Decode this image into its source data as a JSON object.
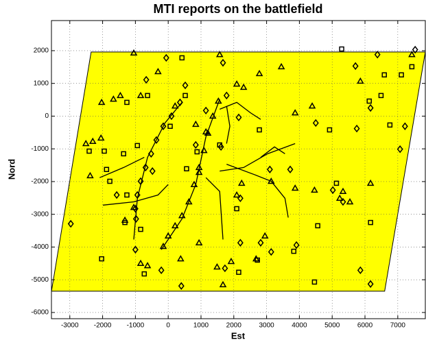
{
  "chart_data": {
    "type": "scatter",
    "title": "MTI reports on the battlefield",
    "x_label": "Est",
    "y_label": "Nord",
    "xlim": [
      -3560,
      7840
    ],
    "ylim": [
      -6190,
      2920
    ],
    "xticks": [
      -3000,
      -2000,
      -1000,
      0,
      1000,
      2000,
      3000,
      4000,
      5000,
      6000,
      7000
    ],
    "yticks": [
      -6000,
      -5000,
      -4000,
      -3000,
      -2000,
      -1000,
      0,
      1000,
      2000
    ],
    "grid": true,
    "region": {
      "color": "#ffff00",
      "x": [
        -2350,
        7840,
        6600,
        -3560
      ],
      "y": [
        1960,
        1960,
        -5350,
        -5350
      ]
    },
    "roads": {
      "color": "#000000",
      "lines": [
        {
          "x": [
            1570,
            1150,
            840,
            420,
            -210
          ],
          "y": [
            520,
            -630,
            -2090,
            -3140,
            -4080
          ]
        },
        {
          "x": [
            420,
            -100,
            -630,
            -940,
            -1050
          ],
          "y": [
            420,
            -210,
            -1260,
            -2510,
            -3770
          ]
        },
        {
          "x": [
            -1990,
            -1050,
            -310,
            0
          ],
          "y": [
            -2720,
            -2620,
            -2410,
            -2090
          ]
        },
        {
          "x": [
            1570,
            2090,
            2510,
            2820
          ],
          "y": [
            210,
            420,
            100,
            -100
          ]
        },
        {
          "x": [
            1570,
            2300,
            3030,
            3870
          ],
          "y": [
            -1680,
            -1570,
            -1150,
            -840
          ]
        },
        {
          "x": [
            1780,
            2610,
            3140,
            3560,
            3660
          ],
          "y": [
            -1470,
            -1780,
            -1990,
            -2510,
            -3100
          ]
        },
        {
          "x": [
            1150,
            1570,
            1670
          ],
          "y": [
            -1880,
            -2300,
            -3770
          ]
        },
        {
          "x": [
            -2090,
            -1360,
            -730
          ],
          "y": [
            -1880,
            -1570,
            -1260
          ]
        },
        {
          "x": [
            1780,
            1880,
            1780
          ],
          "y": [
            310,
            -310,
            -840
          ]
        },
        {
          "x": [
            2820,
            3240,
            3560
          ],
          "y": [
            -1260,
            -940,
            -1150
          ]
        }
      ]
    },
    "series": [
      {
        "marker": "triangle",
        "color": "#000000",
        "x": [
          -2300,
          -2510,
          -2380,
          -2030,
          -1670,
          -840,
          -310,
          -1050,
          210,
          840,
          1150,
          940,
          1570,
          2090,
          2300,
          2780,
          3450,
          3870,
          3870,
          4460,
          5230,
          5540,
          6170,
          5330,
          4390,
          -1460,
          -2050,
          -840,
          -630,
          380,
          940,
          1490,
          1670,
          1920,
          2680,
          2950,
          3140,
          2090,
          2240,
          -1050,
          -1320,
          5860,
          7430,
          1530,
          1360,
          1210,
          1090,
          940,
          790,
          630,
          420,
          210,
          0,
          -150
        ],
        "y": [
          -770,
          -840,
          -1820,
          420,
          520,
          630,
          1360,
          1930,
          310,
          -250,
          -480,
          -1720,
          1880,
          980,
          880,
          1300,
          1510,
          100,
          -2200,
          -2260,
          -2510,
          -2620,
          -2050,
          -2300,
          310,
          630,
          -670,
          -4500,
          -4570,
          -4360,
          -3870,
          -4610,
          -5150,
          -4440,
          -4360,
          -3660,
          -1990,
          -2410,
          -2050,
          -2790,
          -3180,
          1070,
          1880,
          460,
          0,
          -520,
          -1050,
          -1570,
          -2090,
          -2620,
          -3040,
          -3350,
          -3660,
          -3980
        ]
      },
      {
        "marker": "square",
        "color": "#000000",
        "x": [
          -1950,
          -2410,
          -1880,
          -1260,
          -1320,
          -2030,
          -730,
          -840,
          -630,
          420,
          60,
          880,
          1570,
          2090,
          2150,
          2720,
          3830,
          4460,
          4560,
          5130,
          6170,
          6130,
          6490,
          6590,
          7110,
          7430,
          6760,
          4920,
          5290,
          -1260,
          -940,
          560,
          520,
          2780,
          -1360,
          -1780
        ],
        "y": [
          -1070,
          -1070,
          -1630,
          -2410,
          -3250,
          -4360,
          -4820,
          -3460,
          630,
          1780,
          -310,
          -1090,
          -880,
          -2830,
          -4770,
          -4400,
          -4130,
          -5070,
          -3350,
          -2050,
          -3250,
          460,
          630,
          1260,
          1260,
          1510,
          -270,
          -420,
          2050,
          420,
          -900,
          -1610,
          630,
          -420,
          -1150,
          -1990
        ]
      },
      {
        "marker": "diamond",
        "color": "#000000",
        "x": [
          -2970,
          -60,
          1670,
          -670,
          1780,
          520,
          4500,
          5750,
          6170,
          6380,
          5710,
          7530,
          7070,
          7220,
          5020,
          5330,
          5860,
          6170,
          3910,
          3140,
          2820,
          2200,
          1730,
          400,
          -210,
          -1000,
          -1570,
          -480,
          1610,
          840,
          1150,
          2150,
          2200,
          3100,
          3720,
          360,
          100,
          -150,
          -360,
          -520,
          -690,
          -840,
          -940,
          -1000,
          -980
        ],
        "y": [
          -3290,
          1780,
          1630,
          1110,
          630,
          940,
          -210,
          -380,
          250,
          1880,
          1530,
          2030,
          -1010,
          -310,
          -2260,
          -2620,
          -4710,
          -5130,
          -3940,
          -4150,
          -3870,
          -3870,
          -4650,
          -5190,
          -4710,
          -4080,
          -2410,
          -1680,
          -940,
          -880,
          170,
          -40,
          -2510,
          -1630,
          -1630,
          420,
          0,
          -310,
          -730,
          -1150,
          -1570,
          -1990,
          -2410,
          -2830,
          -3140
        ]
      }
    ]
  }
}
